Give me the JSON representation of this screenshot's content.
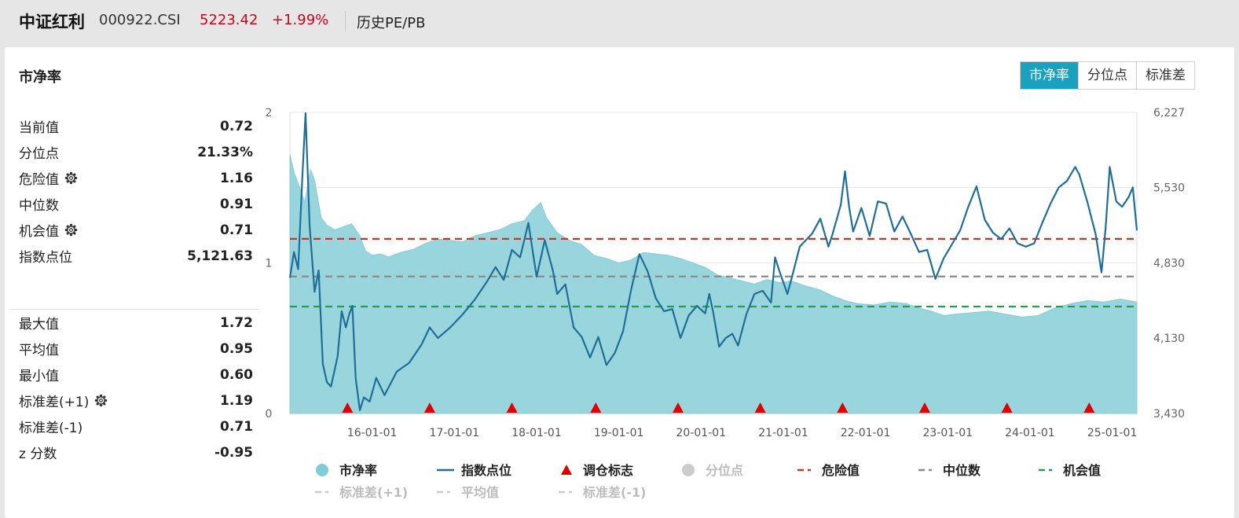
{
  "header": {
    "title": "中证红利",
    "code": "000922.CSI",
    "price": "5223.42",
    "change": "+1.99%",
    "nav_link": "历史PE/PB"
  },
  "panel": {
    "title": "市净率",
    "tabs": [
      {
        "label": "市净率",
        "active": true
      },
      {
        "label": "分位点",
        "active": false
      },
      {
        "label": "标准差",
        "active": false
      }
    ]
  },
  "stats_top": [
    {
      "label": "当前值",
      "value": "0.72",
      "gear": false
    },
    {
      "label": "分位点",
      "value": "21.33%",
      "gear": false
    },
    {
      "label": "危险值",
      "value": "1.16",
      "gear": true
    },
    {
      "label": "中位数",
      "value": "0.91",
      "gear": false
    },
    {
      "label": "机会值",
      "value": "0.71",
      "gear": true
    },
    {
      "label": "指数点位",
      "value": "5,121.63",
      "gear": false
    }
  ],
  "stats_bottom": [
    {
      "label": "最大值",
      "value": "1.72",
      "gear": false
    },
    {
      "label": "平均值",
      "value": "0.95",
      "gear": false
    },
    {
      "label": "最小值",
      "value": "0.60",
      "gear": false
    },
    {
      "label": "标准差(+1)",
      "value": "1.19",
      "gear": true
    },
    {
      "label": "标准差(-1)",
      "value": "0.71",
      "gear": false
    },
    {
      "label": "z 分数",
      "value": "-0.95",
      "gear": false
    }
  ],
  "colors": {
    "accent": "#1aa1bd",
    "area_fill": "#99d5dd",
    "area_stroke": "#86ccd6",
    "index_line": "#1f6e98",
    "danger": "#c0392b",
    "median": "#8a8a8a",
    "opportunity": "#20a050",
    "marker": "#e00000",
    "price_red": "#d0021b"
  },
  "chart_data": {
    "type": "area",
    "left_axis": {
      "min": 0,
      "max": 2,
      "ticks": [
        "0",
        "1",
        "2"
      ]
    },
    "right_axis": {
      "min": 3430,
      "max": 6227,
      "ticks": [
        "3,430",
        "4,130",
        "4,830",
        "5,530",
        "6,227"
      ]
    },
    "x_range": [
      2015.0,
      2025.3
    ],
    "x_ticks": [
      {
        "x": 2016,
        "label": "16-01-01"
      },
      {
        "x": 2017,
        "label": "17-01-01"
      },
      {
        "x": 2018,
        "label": "18-01-01"
      },
      {
        "x": 2019,
        "label": "19-01-01"
      },
      {
        "x": 2020,
        "label": "20-01-01"
      },
      {
        "x": 2021,
        "label": "21-01-01"
      },
      {
        "x": 2022,
        "label": "22-01-01"
      },
      {
        "x": 2023,
        "label": "23-01-01"
      },
      {
        "x": 2024,
        "label": "24-01-01"
      },
      {
        "x": 2025,
        "label": "25-01-01"
      }
    ],
    "rebalance_markers": [
      2015.7,
      2016.7,
      2017.7,
      2018.72,
      2019.72,
      2020.72,
      2021.72,
      2022.72,
      2023.72,
      2024.72
    ],
    "reference_lines": {
      "danger": 1.16,
      "median": 0.91,
      "opportunity": 0.71
    },
    "series": [
      {
        "name": "市净率",
        "axis": "left",
        "points": [
          [
            2015.0,
            1.72
          ],
          [
            2015.05,
            1.6
          ],
          [
            2015.12,
            1.5
          ],
          [
            2015.18,
            1.4
          ],
          [
            2015.25,
            1.62
          ],
          [
            2015.3,
            1.55
          ],
          [
            2015.38,
            1.3
          ],
          [
            2015.45,
            1.25
          ],
          [
            2015.55,
            1.22
          ],
          [
            2015.65,
            1.24
          ],
          [
            2015.75,
            1.26
          ],
          [
            2015.85,
            1.18
          ],
          [
            2015.92,
            1.08
          ],
          [
            2016.0,
            1.05
          ],
          [
            2016.1,
            1.06
          ],
          [
            2016.2,
            1.04
          ],
          [
            2016.35,
            1.07
          ],
          [
            2016.5,
            1.09
          ],
          [
            2016.65,
            1.13
          ],
          [
            2016.8,
            1.16
          ],
          [
            2016.95,
            1.15
          ],
          [
            2017.1,
            1.14
          ],
          [
            2017.25,
            1.18
          ],
          [
            2017.4,
            1.2
          ],
          [
            2017.55,
            1.22
          ],
          [
            2017.7,
            1.26
          ],
          [
            2017.85,
            1.28
          ],
          [
            2017.95,
            1.35
          ],
          [
            2018.05,
            1.4
          ],
          [
            2018.12,
            1.3
          ],
          [
            2018.25,
            1.2
          ],
          [
            2018.4,
            1.15
          ],
          [
            2018.55,
            1.12
          ],
          [
            2018.7,
            1.05
          ],
          [
            2018.85,
            1.03
          ],
          [
            2019.0,
            1.0
          ],
          [
            2019.15,
            1.02
          ],
          [
            2019.3,
            1.07
          ],
          [
            2019.45,
            1.06
          ],
          [
            2019.6,
            1.05
          ],
          [
            2019.75,
            1.03
          ],
          [
            2019.9,
            1.0
          ],
          [
            2020.05,
            0.97
          ],
          [
            2020.2,
            0.92
          ],
          [
            2020.35,
            0.9
          ],
          [
            2020.5,
            0.88
          ],
          [
            2020.65,
            0.86
          ],
          [
            2020.8,
            0.89
          ],
          [
            2020.95,
            0.87
          ],
          [
            2021.1,
            0.88
          ],
          [
            2021.25,
            0.85
          ],
          [
            2021.45,
            0.82
          ],
          [
            2021.6,
            0.78
          ],
          [
            2021.75,
            0.75
          ],
          [
            2021.9,
            0.73
          ],
          [
            2022.1,
            0.72
          ],
          [
            2022.3,
            0.74
          ],
          [
            2022.5,
            0.73
          ],
          [
            2022.65,
            0.7
          ],
          [
            2022.8,
            0.68
          ],
          [
            2022.95,
            0.65
          ],
          [
            2023.1,
            0.66
          ],
          [
            2023.3,
            0.67
          ],
          [
            2023.5,
            0.68
          ],
          [
            2023.7,
            0.66
          ],
          [
            2023.9,
            0.64
          ],
          [
            2024.1,
            0.65
          ],
          [
            2024.3,
            0.7
          ],
          [
            2024.5,
            0.73
          ],
          [
            2024.7,
            0.75
          ],
          [
            2024.9,
            0.74
          ],
          [
            2025.1,
            0.76
          ],
          [
            2025.3,
            0.74
          ]
        ]
      },
      {
        "name": "指数点位",
        "axis": "right",
        "points": [
          [
            2015.0,
            4690
          ],
          [
            2015.05,
            4930
          ],
          [
            2015.1,
            4770
          ],
          [
            2015.15,
            5610
          ],
          [
            2015.19,
            6220
          ],
          [
            2015.24,
            5170
          ],
          [
            2015.3,
            4560
          ],
          [
            2015.35,
            4760
          ],
          [
            2015.4,
            3890
          ],
          [
            2015.45,
            3720
          ],
          [
            2015.5,
            3680
          ],
          [
            2015.58,
            3960
          ],
          [
            2015.63,
            4380
          ],
          [
            2015.68,
            4230
          ],
          [
            2015.72,
            4350
          ],
          [
            2015.76,
            4430
          ],
          [
            2015.8,
            3760
          ],
          [
            2015.85,
            3460
          ],
          [
            2015.9,
            3580
          ],
          [
            2015.97,
            3540
          ],
          [
            2016.05,
            3760
          ],
          [
            2016.15,
            3600
          ],
          [
            2016.3,
            3820
          ],
          [
            2016.45,
            3900
          ],
          [
            2016.6,
            4070
          ],
          [
            2016.7,
            4230
          ],
          [
            2016.8,
            4130
          ],
          [
            2016.95,
            4230
          ],
          [
            2017.1,
            4350
          ],
          [
            2017.25,
            4490
          ],
          [
            2017.4,
            4660
          ],
          [
            2017.5,
            4790
          ],
          [
            2017.6,
            4670
          ],
          [
            2017.7,
            4950
          ],
          [
            2017.8,
            4880
          ],
          [
            2017.9,
            5200
          ],
          [
            2018.0,
            4700
          ],
          [
            2018.1,
            5040
          ],
          [
            2018.2,
            4750
          ],
          [
            2018.25,
            4540
          ],
          [
            2018.35,
            4630
          ],
          [
            2018.45,
            4230
          ],
          [
            2018.55,
            4140
          ],
          [
            2018.65,
            3950
          ],
          [
            2018.75,
            4140
          ],
          [
            2018.85,
            3880
          ],
          [
            2018.95,
            3990
          ],
          [
            2019.05,
            4190
          ],
          [
            2019.15,
            4580
          ],
          [
            2019.25,
            4910
          ],
          [
            2019.35,
            4750
          ],
          [
            2019.45,
            4500
          ],
          [
            2019.55,
            4380
          ],
          [
            2019.65,
            4400
          ],
          [
            2019.75,
            4130
          ],
          [
            2019.85,
            4340
          ],
          [
            2019.95,
            4430
          ],
          [
            2020.05,
            4360
          ],
          [
            2020.1,
            4540
          ],
          [
            2020.15,
            4360
          ],
          [
            2020.22,
            4050
          ],
          [
            2020.3,
            4130
          ],
          [
            2020.38,
            4170
          ],
          [
            2020.45,
            4060
          ],
          [
            2020.55,
            4350
          ],
          [
            2020.65,
            4540
          ],
          [
            2020.75,
            4570
          ],
          [
            2020.85,
            4460
          ],
          [
            2020.9,
            4880
          ],
          [
            2020.95,
            4760
          ],
          [
            2021.05,
            4540
          ],
          [
            2021.1,
            4680
          ],
          [
            2021.2,
            4980
          ],
          [
            2021.35,
            5100
          ],
          [
            2021.45,
            5240
          ],
          [
            2021.55,
            4980
          ],
          [
            2021.6,
            5100
          ],
          [
            2021.7,
            5370
          ],
          [
            2021.75,
            5680
          ],
          [
            2021.8,
            5350
          ],
          [
            2021.85,
            5120
          ],
          [
            2021.95,
            5340
          ],
          [
            2022.05,
            5080
          ],
          [
            2022.15,
            5400
          ],
          [
            2022.25,
            5380
          ],
          [
            2022.35,
            5120
          ],
          [
            2022.45,
            5260
          ],
          [
            2022.55,
            5100
          ],
          [
            2022.65,
            4930
          ],
          [
            2022.75,
            4950
          ],
          [
            2022.85,
            4680
          ],
          [
            2022.95,
            4870
          ],
          [
            2023.05,
            5000
          ],
          [
            2023.15,
            5130
          ],
          [
            2023.25,
            5350
          ],
          [
            2023.35,
            5540
          ],
          [
            2023.45,
            5230
          ],
          [
            2023.55,
            5110
          ],
          [
            2023.65,
            5050
          ],
          [
            2023.75,
            5150
          ],
          [
            2023.85,
            5010
          ],
          [
            2023.95,
            4980
          ],
          [
            2024.05,
            5010
          ],
          [
            2024.15,
            5200
          ],
          [
            2024.25,
            5380
          ],
          [
            2024.35,
            5530
          ],
          [
            2024.45,
            5590
          ],
          [
            2024.55,
            5720
          ],
          [
            2024.6,
            5650
          ],
          [
            2024.7,
            5390
          ],
          [
            2024.8,
            5090
          ],
          [
            2024.87,
            4740
          ],
          [
            2024.92,
            5150
          ],
          [
            2024.97,
            5720
          ],
          [
            2025.05,
            5400
          ],
          [
            2025.12,
            5350
          ],
          [
            2025.2,
            5440
          ],
          [
            2025.25,
            5530
          ],
          [
            2025.3,
            5130
          ]
        ]
      }
    ],
    "legend": [
      {
        "label": "市净率",
        "kind": "dot",
        "color": "#7fcdd8",
        "dimmed": false
      },
      {
        "label": "指数点位",
        "kind": "line",
        "color": "#1f6e98",
        "dimmed": false
      },
      {
        "label": "调仓标志",
        "kind": "triangle",
        "color": "#e00000",
        "dimmed": false
      },
      {
        "label": "分位点",
        "kind": "dot",
        "color": "#cccccc",
        "dimmed": true
      },
      {
        "label": "危险值",
        "kind": "dash",
        "color": "#c0392b",
        "dimmed": false
      },
      {
        "label": "中位数",
        "kind": "dash",
        "color": "#8a8a8a",
        "dimmed": false
      },
      {
        "label": "机会值",
        "kind": "dash",
        "color": "#20a050",
        "dimmed": false
      },
      {
        "label": "标准差(+1)",
        "kind": "dash",
        "color": "#cccccc",
        "dimmed": true
      },
      {
        "label": "平均值",
        "kind": "dash",
        "color": "#cccccc",
        "dimmed": true
      },
      {
        "label": "标准差(-1)",
        "kind": "dash",
        "color": "#cccccc",
        "dimmed": true
      }
    ]
  }
}
